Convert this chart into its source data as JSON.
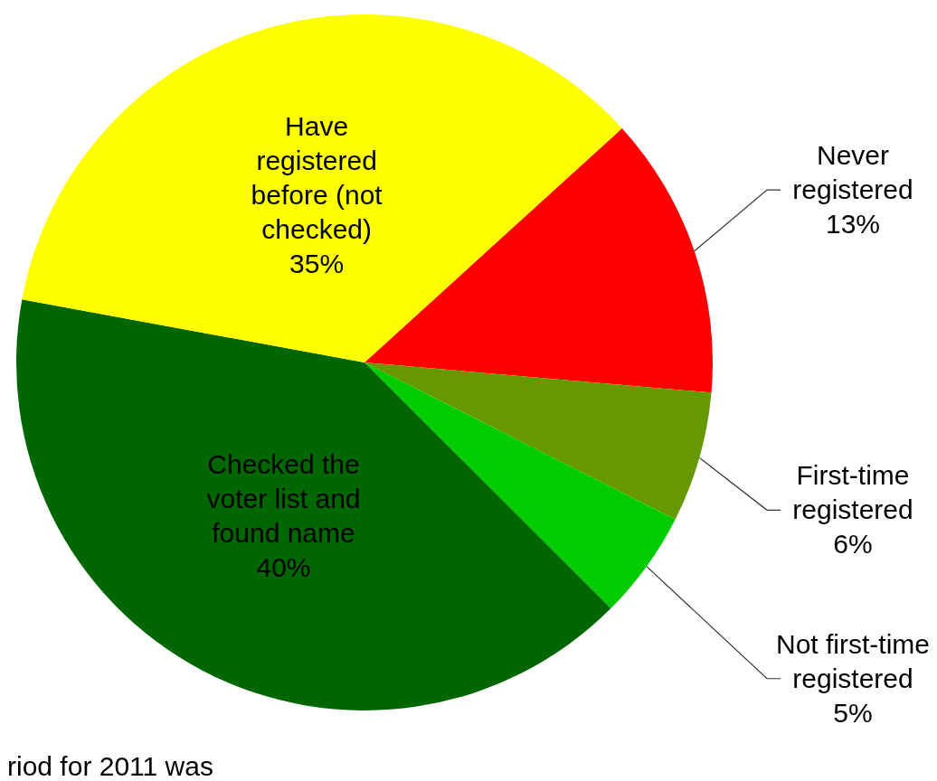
{
  "chart_data": {
    "type": "pie",
    "categories": [
      "Never registered",
      "First-time registered",
      "Not first-time registered",
      "Checked the voter list and found name",
      "Have registered before (not checked)"
    ],
    "values": [
      13,
      6,
      5,
      40,
      35
    ],
    "colors": [
      "#ff0000",
      "#669900",
      "#00cc00",
      "#006600",
      "#ffff00"
    ],
    "value_labels": [
      "13%",
      "6%",
      "5%",
      "40%",
      "35%"
    ],
    "annotations": [
      "riod for 2011 was"
    ]
  }
}
